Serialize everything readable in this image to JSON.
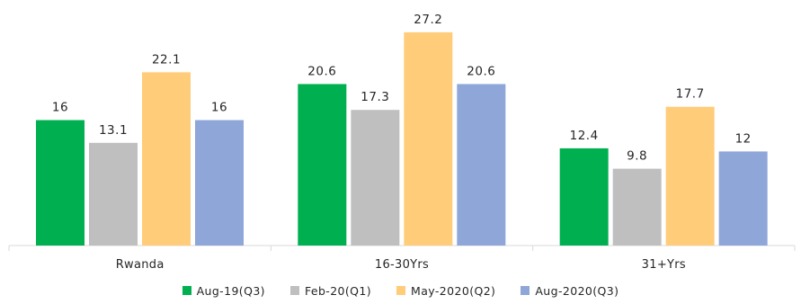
{
  "chart_data": {
    "type": "bar",
    "title": "",
    "xlabel": "",
    "ylabel": "",
    "categories": [
      "Rwanda",
      "16-30Yrs",
      "31+Yrs"
    ],
    "series": [
      {
        "name": "Aug-19(Q3)",
        "values": [
          16,
          20.6,
          12.4
        ],
        "value_labels": [
          "16",
          "20.6",
          "12.4"
        ],
        "color": "#00b050"
      },
      {
        "name": "Feb-20(Q1)",
        "values": [
          13.1,
          17.3,
          9.8
        ],
        "value_labels": [
          "13.1",
          "17.3",
          "9.8"
        ],
        "color": "#bfbfbf"
      },
      {
        "name": "May-2020(Q2)",
        "values": [
          22.1,
          27.2,
          17.7
        ],
        "value_labels": [
          "22.1",
          "27.2",
          "17.7"
        ],
        "color": "#ffcc7a"
      },
      {
        "name": "Aug-2020(Q3)",
        "values": [
          16,
          20.6,
          12
        ],
        "value_labels": [
          "16",
          "20.6",
          "12"
        ],
        "color": "#8ea6d8"
      }
    ],
    "ylim": [
      0,
      29.6
    ],
    "grid": false,
    "legend_position": "bottom"
  }
}
